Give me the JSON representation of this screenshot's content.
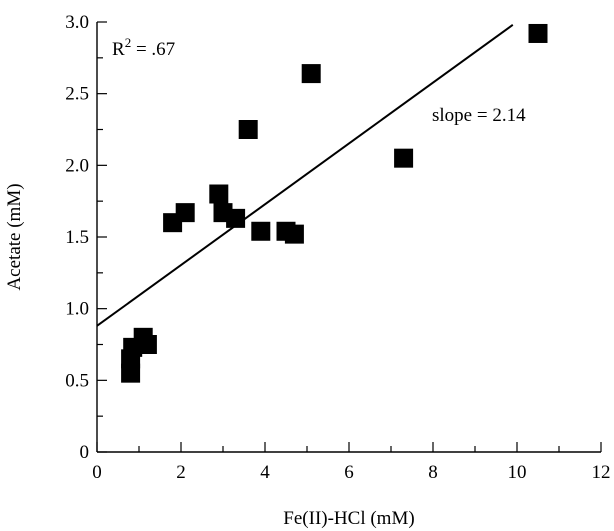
{
  "chart_data": {
    "type": "scatter",
    "title": "",
    "xlabel": "Fe(II)-HCl (mM)",
    "ylabel": "Acetate (mM)",
    "xlim": [
      0,
      12
    ],
    "ylim": [
      0,
      3.0
    ],
    "xticks": [
      "0",
      "2",
      "4",
      "6",
      "8",
      "10",
      "12"
    ],
    "yticks": [
      "0",
      "0.5",
      "1.0",
      "1.5",
      "2.0",
      "2.5",
      "3.0"
    ],
    "grid": false,
    "marker": "square",
    "points": [
      {
        "x": 0.8,
        "y": 0.55
      },
      {
        "x": 0.8,
        "y": 0.65
      },
      {
        "x": 0.85,
        "y": 0.73
      },
      {
        "x": 1.1,
        "y": 0.8
      },
      {
        "x": 1.2,
        "y": 0.75
      },
      {
        "x": 1.8,
        "y": 1.6
      },
      {
        "x": 2.1,
        "y": 1.67
      },
      {
        "x": 2.9,
        "y": 1.8
      },
      {
        "x": 3.0,
        "y": 1.67
      },
      {
        "x": 3.3,
        "y": 1.63
      },
      {
        "x": 3.6,
        "y": 2.25
      },
      {
        "x": 3.9,
        "y": 1.54
      },
      {
        "x": 4.5,
        "y": 1.54
      },
      {
        "x": 4.7,
        "y": 1.52
      },
      {
        "x": 5.1,
        "y": 2.64
      },
      {
        "x": 7.3,
        "y": 2.05
      },
      {
        "x": 10.5,
        "y": 2.92
      }
    ],
    "fit_line": {
      "x": [
        0,
        9.9
      ],
      "y": [
        0.88,
        2.98
      ]
    },
    "annotations": {
      "r2_base": "R",
      "r2_exp": "2",
      "r2_value": " = .67",
      "slope": "slope = 2.14"
    }
  }
}
